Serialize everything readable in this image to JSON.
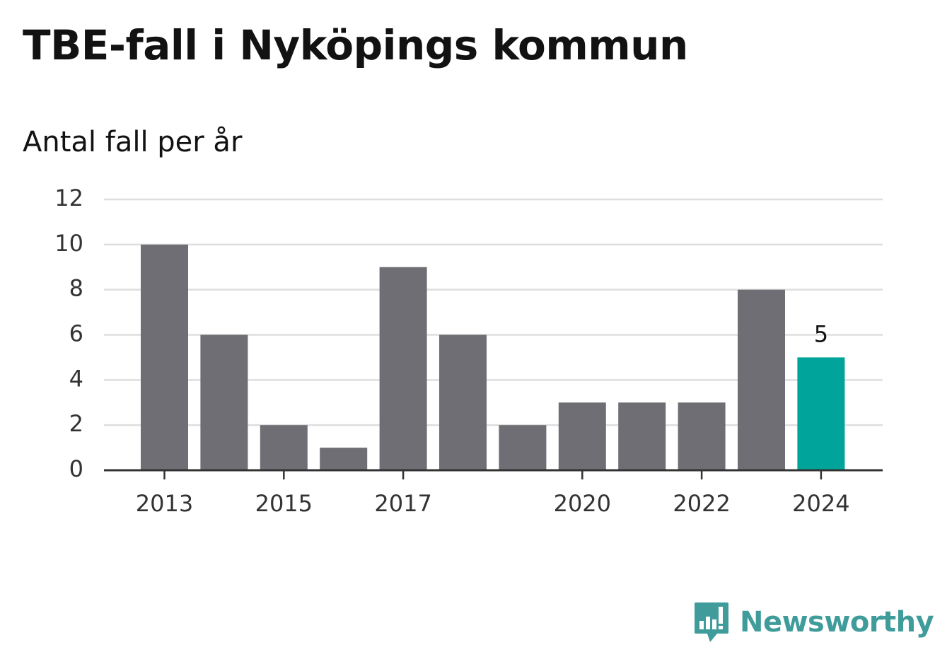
{
  "header": {
    "title": "TBE-fall i Nyköpings kommun",
    "subtitle": "Antal fall per år"
  },
  "chart_data": {
    "type": "bar",
    "title": "TBE-fall i Nyköpings kommun",
    "subtitle": "Antal fall per år",
    "xlabel": "",
    "ylabel": "",
    "categories": [
      "2013",
      "2014",
      "2015",
      "2016",
      "2017",
      "2018",
      "2019",
      "2020",
      "2021",
      "2022",
      "2023",
      "2024"
    ],
    "values": [
      10,
      6,
      2,
      1,
      9,
      6,
      2,
      3,
      3,
      3,
      8,
      5
    ],
    "x_tick_labels": [
      "2013",
      "2015",
      "2017",
      "2020",
      "2022",
      "2024"
    ],
    "y_ticks": [
      0,
      2,
      4,
      6,
      8,
      10,
      12
    ],
    "ylim": [
      0,
      12
    ],
    "grid": true,
    "highlight": {
      "category": "2024",
      "label": "5"
    },
    "colors": {
      "bar": "#6f6e74",
      "highlight": "#00a49a",
      "grid": "#dedede",
      "axis": "#333333",
      "tick_text": "#333333"
    }
  },
  "brand": {
    "name": "Newsworthy",
    "logo_icon": "newsworthy-chart-icon",
    "color": "#3f9c9a"
  }
}
